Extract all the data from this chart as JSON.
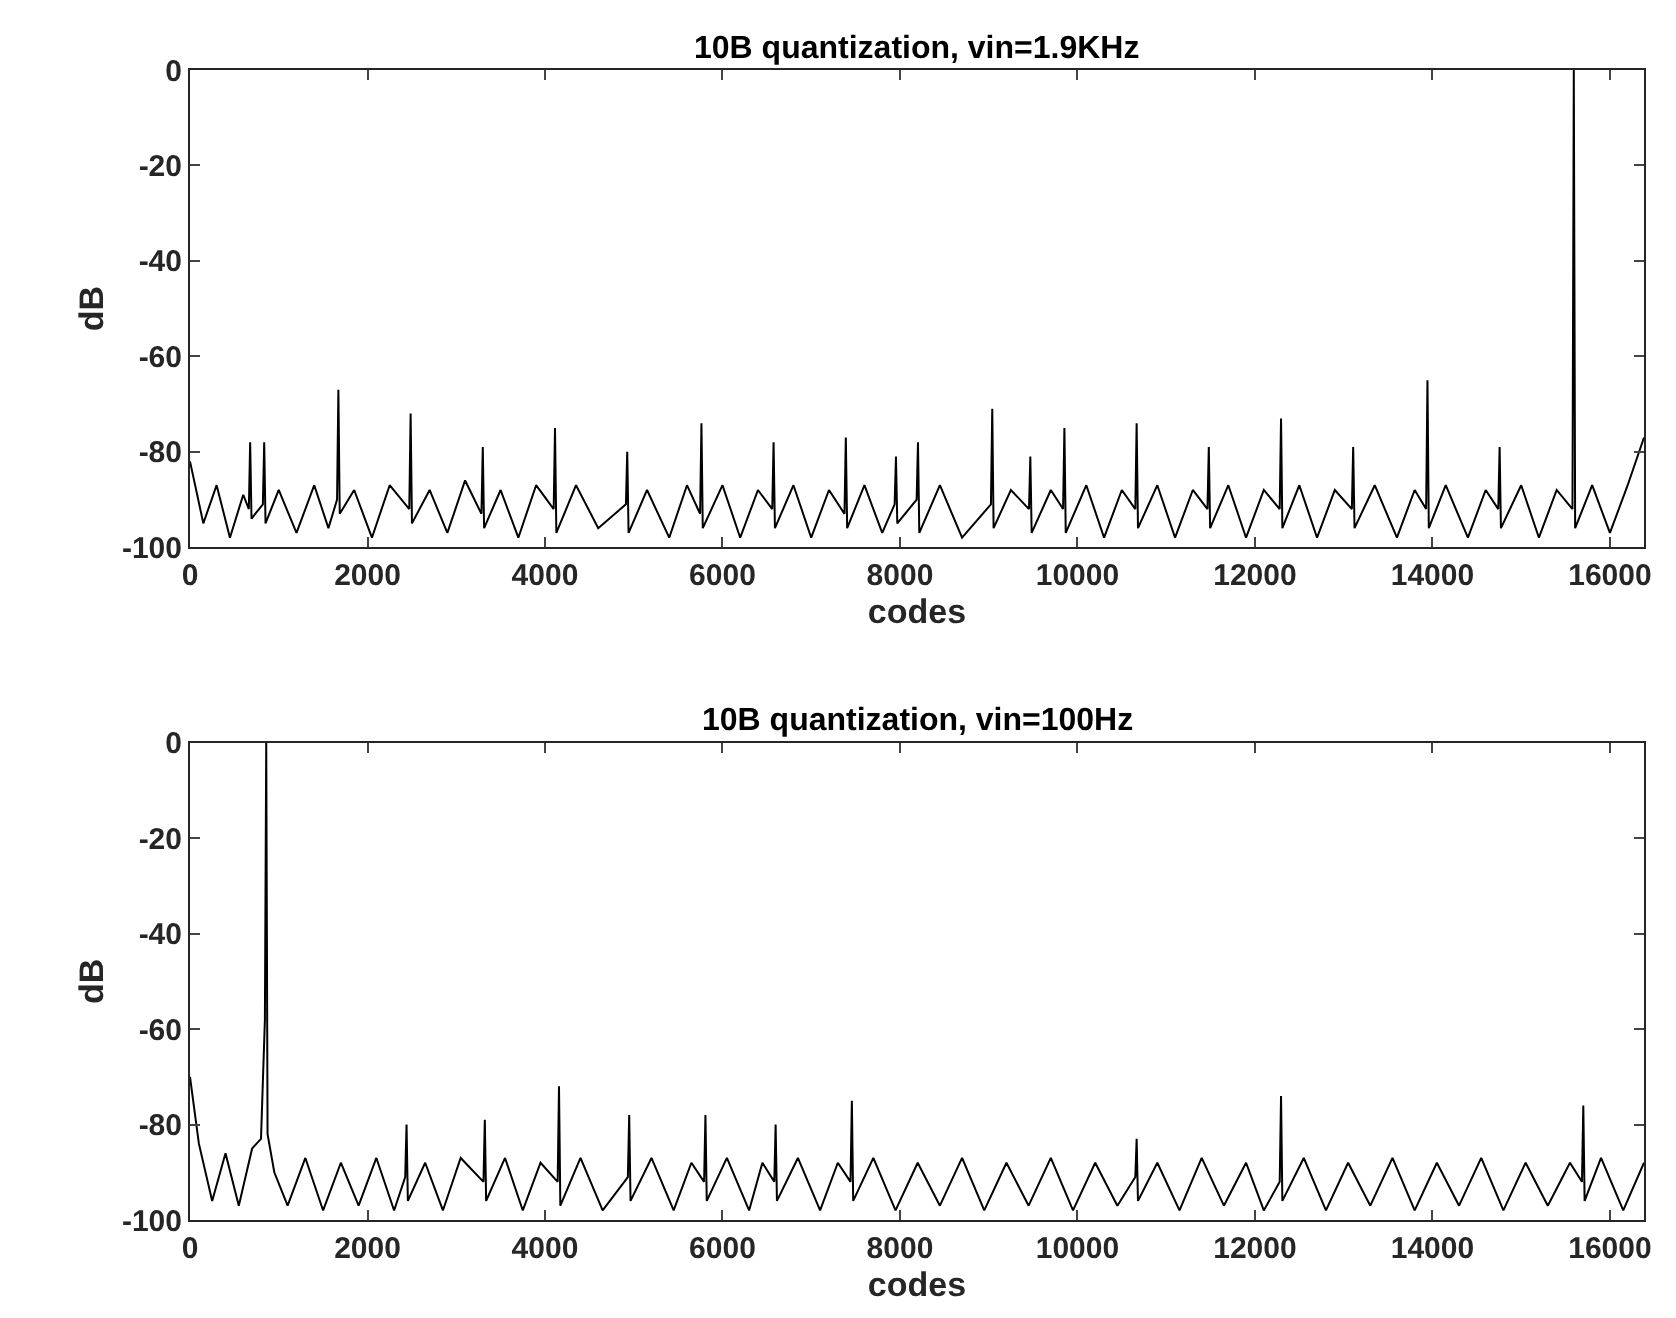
{
  "chart_data": [
    {
      "type": "line",
      "title": "10B quantization, vin=1.9KHz",
      "xlabel": "codes",
      "ylabel": "dB",
      "xlim": [
        0,
        16384
      ],
      "xticks": [
        0,
        2000,
        4000,
        6000,
        8000,
        10000,
        12000,
        14000,
        16000
      ],
      "ylim": [
        -100,
        0
      ],
      "yticks": [
        -100,
        -80,
        -60,
        -40,
        -20,
        0
      ],
      "marker": "none",
      "line_style": "solid",
      "series": [
        {
          "color": "#000000",
          "x": [
            0,
            150,
            300,
            450,
            600,
            663,
            678,
            693,
            821,
            836,
            851,
            1000,
            1200,
            1400,
            1560,
            1657,
            1672,
            1687,
            1850,
            2050,
            2250,
            2471,
            2486,
            2501,
            2700,
            2900,
            3100,
            3284,
            3299,
            3314,
            3500,
            3700,
            3900,
            4098,
            4113,
            4128,
            4350,
            4600,
            4912,
            4927,
            4942,
            5150,
            5400,
            5600,
            5748,
            5763,
            5778,
            6000,
            6200,
            6400,
            6561,
            6576,
            6591,
            6800,
            7000,
            7200,
            7375,
            7390,
            7405,
            7600,
            7800,
            7940,
            7955,
            7970,
            8188,
            8203,
            8218,
            8450,
            8700,
            9025,
            9040,
            9055,
            9250,
            9454,
            9469,
            9484,
            9700,
            9838,
            9853,
            9868,
            10100,
            10300,
            10500,
            10652,
            10667,
            10682,
            10900,
            11100,
            11300,
            11465,
            11480,
            11495,
            11700,
            11900,
            12100,
            12279,
            12294,
            12309,
            12500,
            12700,
            12900,
            13092,
            13107,
            13122,
            13350,
            13600,
            13800,
            13929,
            13944,
            13959,
            14150,
            14400,
            14600,
            14742,
            14757,
            14772,
            15000,
            15200,
            15400,
            15578,
            15593,
            15608,
            15800,
            16000,
            16200,
            16384
          ],
          "values": [
            -82,
            -95,
            -87,
            -98,
            -89,
            -92,
            -78,
            -94,
            -91,
            -78,
            -95,
            -88,
            -97,
            -87,
            -96,
            -90,
            -67,
            -93,
            -88,
            -98,
            -87,
            -92,
            -72,
            -95,
            -88,
            -97,
            -86,
            -93,
            -79,
            -96,
            -88,
            -98,
            -87,
            -92,
            -75,
            -97,
            -87,
            -96,
            -91,
            -80,
            -97,
            -88,
            -98,
            -87,
            -93,
            -74,
            -96,
            -87,
            -98,
            -88,
            -92,
            -78,
            -96,
            -87,
            -98,
            -88,
            -93,
            -77,
            -96,
            -87,
            -97,
            -91,
            -81,
            -95,
            -90,
            -78,
            -97,
            -87,
            -98,
            -91,
            -71,
            -96,
            -88,
            -92,
            -81,
            -97,
            -88,
            -92,
            -75,
            -97,
            -87,
            -98,
            -88,
            -92,
            -74,
            -96,
            -87,
            -98,
            -88,
            -92,
            -79,
            -96,
            -87,
            -98,
            -88,
            -92,
            -73,
            -96,
            -87,
            -98,
            -88,
            -92,
            -79,
            -96,
            -87,
            -98,
            -88,
            -92,
            -65,
            -96,
            -87,
            -98,
            -88,
            -92,
            -79,
            -96,
            -87,
            -98,
            -88,
            -92,
            0,
            -96,
            -87,
            -97,
            -87,
            -77
          ]
        }
      ]
    },
    {
      "type": "line",
      "title": "10B quantization, vin=100Hz",
      "xlabel": "codes",
      "ylabel": "dB",
      "xlim": [
        0,
        16384
      ],
      "xticks": [
        0,
        2000,
        4000,
        6000,
        8000,
        10000,
        12000,
        14000,
        16000
      ],
      "ylim": [
        -100,
        0
      ],
      "yticks": [
        -100,
        -80,
        -60,
        -40,
        -20,
        0
      ],
      "marker": "none",
      "line_style": "solid",
      "series": [
        {
          "color": "#000000",
          "x": [
            0,
            100,
            250,
            400,
            550,
            700,
            800,
            844,
            859,
            874,
            950,
            1100,
            1300,
            1500,
            1700,
            1900,
            2100,
            2300,
            2425,
            2440,
            2455,
            2650,
            2850,
            3050,
            3307,
            3322,
            3337,
            3550,
            3750,
            3950,
            4143,
            4158,
            4173,
            4400,
            4650,
            4934,
            4949,
            4964,
            5200,
            5450,
            5650,
            5793,
            5808,
            5823,
            6050,
            6300,
            6450,
            6584,
            6599,
            6614,
            6850,
            7100,
            7300,
            7443,
            7458,
            7473,
            7700,
            7950,
            8200,
            8450,
            8700,
            8950,
            9200,
            9450,
            9700,
            9950,
            10200,
            10450,
            10652,
            10667,
            10682,
            10900,
            11150,
            11400,
            11650,
            11900,
            12100,
            12279,
            12294,
            12309,
            12550,
            12800,
            13050,
            13300,
            13550,
            13800,
            14050,
            14300,
            14550,
            14800,
            15050,
            15300,
            15550,
            15685,
            15700,
            15715,
            15900,
            16150,
            16384
          ],
          "values": [
            -70,
            -84,
            -96,
            -86,
            -97,
            -85,
            -83,
            -58,
            0,
            -82,
            -90,
            -97,
            -87,
            -98,
            -88,
            -97,
            -87,
            -98,
            -91,
            -80,
            -96,
            -88,
            -98,
            -87,
            -92,
            -79,
            -96,
            -87,
            -98,
            -88,
            -92,
            -72,
            -97,
            -87,
            -98,
            -91,
            -78,
            -96,
            -87,
            -98,
            -88,
            -92,
            -78,
            -96,
            -87,
            -98,
            -88,
            -92,
            -80,
            -96,
            -87,
            -98,
            -88,
            -92,
            -75,
            -96,
            -87,
            -98,
            -88,
            -97,
            -87,
            -98,
            -88,
            -97,
            -87,
            -98,
            -88,
            -97,
            -91,
            -83,
            -96,
            -88,
            -98,
            -87,
            -97,
            -88,
            -98,
            -92,
            -74,
            -96,
            -87,
            -98,
            -88,
            -97,
            -87,
            -98,
            -88,
            -97,
            -87,
            -98,
            -88,
            -97,
            -88,
            -92,
            -76,
            -96,
            -87,
            -98,
            -88
          ]
        }
      ]
    }
  ]
}
